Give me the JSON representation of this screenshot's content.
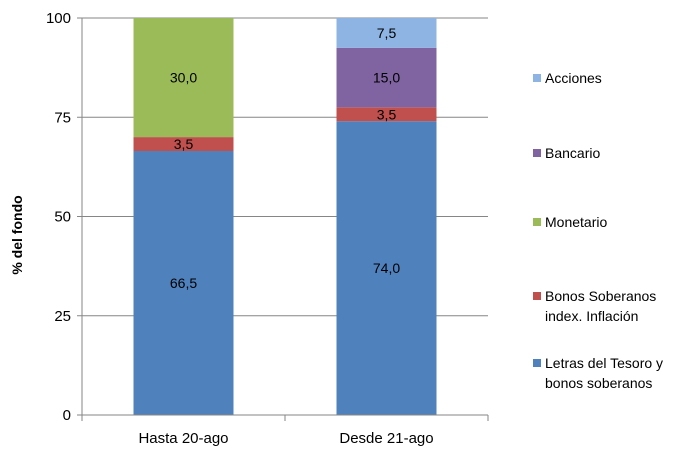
{
  "chart_data": {
    "type": "bar",
    "stacked": true,
    "categories": [
      "Hasta 20-ago",
      "Desde 21-ago"
    ],
    "ylabel": "% del fondo",
    "ylim": [
      0,
      100
    ],
    "yticks": [
      0,
      25,
      50,
      75,
      100
    ],
    "grid": true,
    "legend_position": "right",
    "series": [
      {
        "name": "Letras del Tesoro y bonos soberanos",
        "legend_lines": [
          "Letras del Tesoro y",
          "bonos soberanos"
        ],
        "values": [
          66.5,
          74.0
        ],
        "labels": [
          "66,5",
          "74,0"
        ],
        "color": "#4F81BD"
      },
      {
        "name": "Bonos Soberanos index. Inflación",
        "legend_lines": [
          "Bonos Soberanos",
          "index. Inflación"
        ],
        "values": [
          3.5,
          3.5
        ],
        "labels": [
          "3,5",
          "3,5"
        ],
        "color": "#C0504D"
      },
      {
        "name": "Monetario",
        "legend_lines": [
          "Monetario"
        ],
        "values": [
          30.0,
          0
        ],
        "labels": [
          "30,0",
          ""
        ],
        "color": "#9BBB59"
      },
      {
        "name": "Bancario",
        "legend_lines": [
          "Bancario"
        ],
        "values": [
          0,
          15.0
        ],
        "labels": [
          "",
          "15,0"
        ],
        "color": "#8064A2"
      },
      {
        "name": "Acciones",
        "legend_lines": [
          "Acciones"
        ],
        "values": [
          0,
          7.5
        ],
        "labels": [
          "",
          "7,5"
        ],
        "color": "#8DB4E2"
      }
    ]
  }
}
